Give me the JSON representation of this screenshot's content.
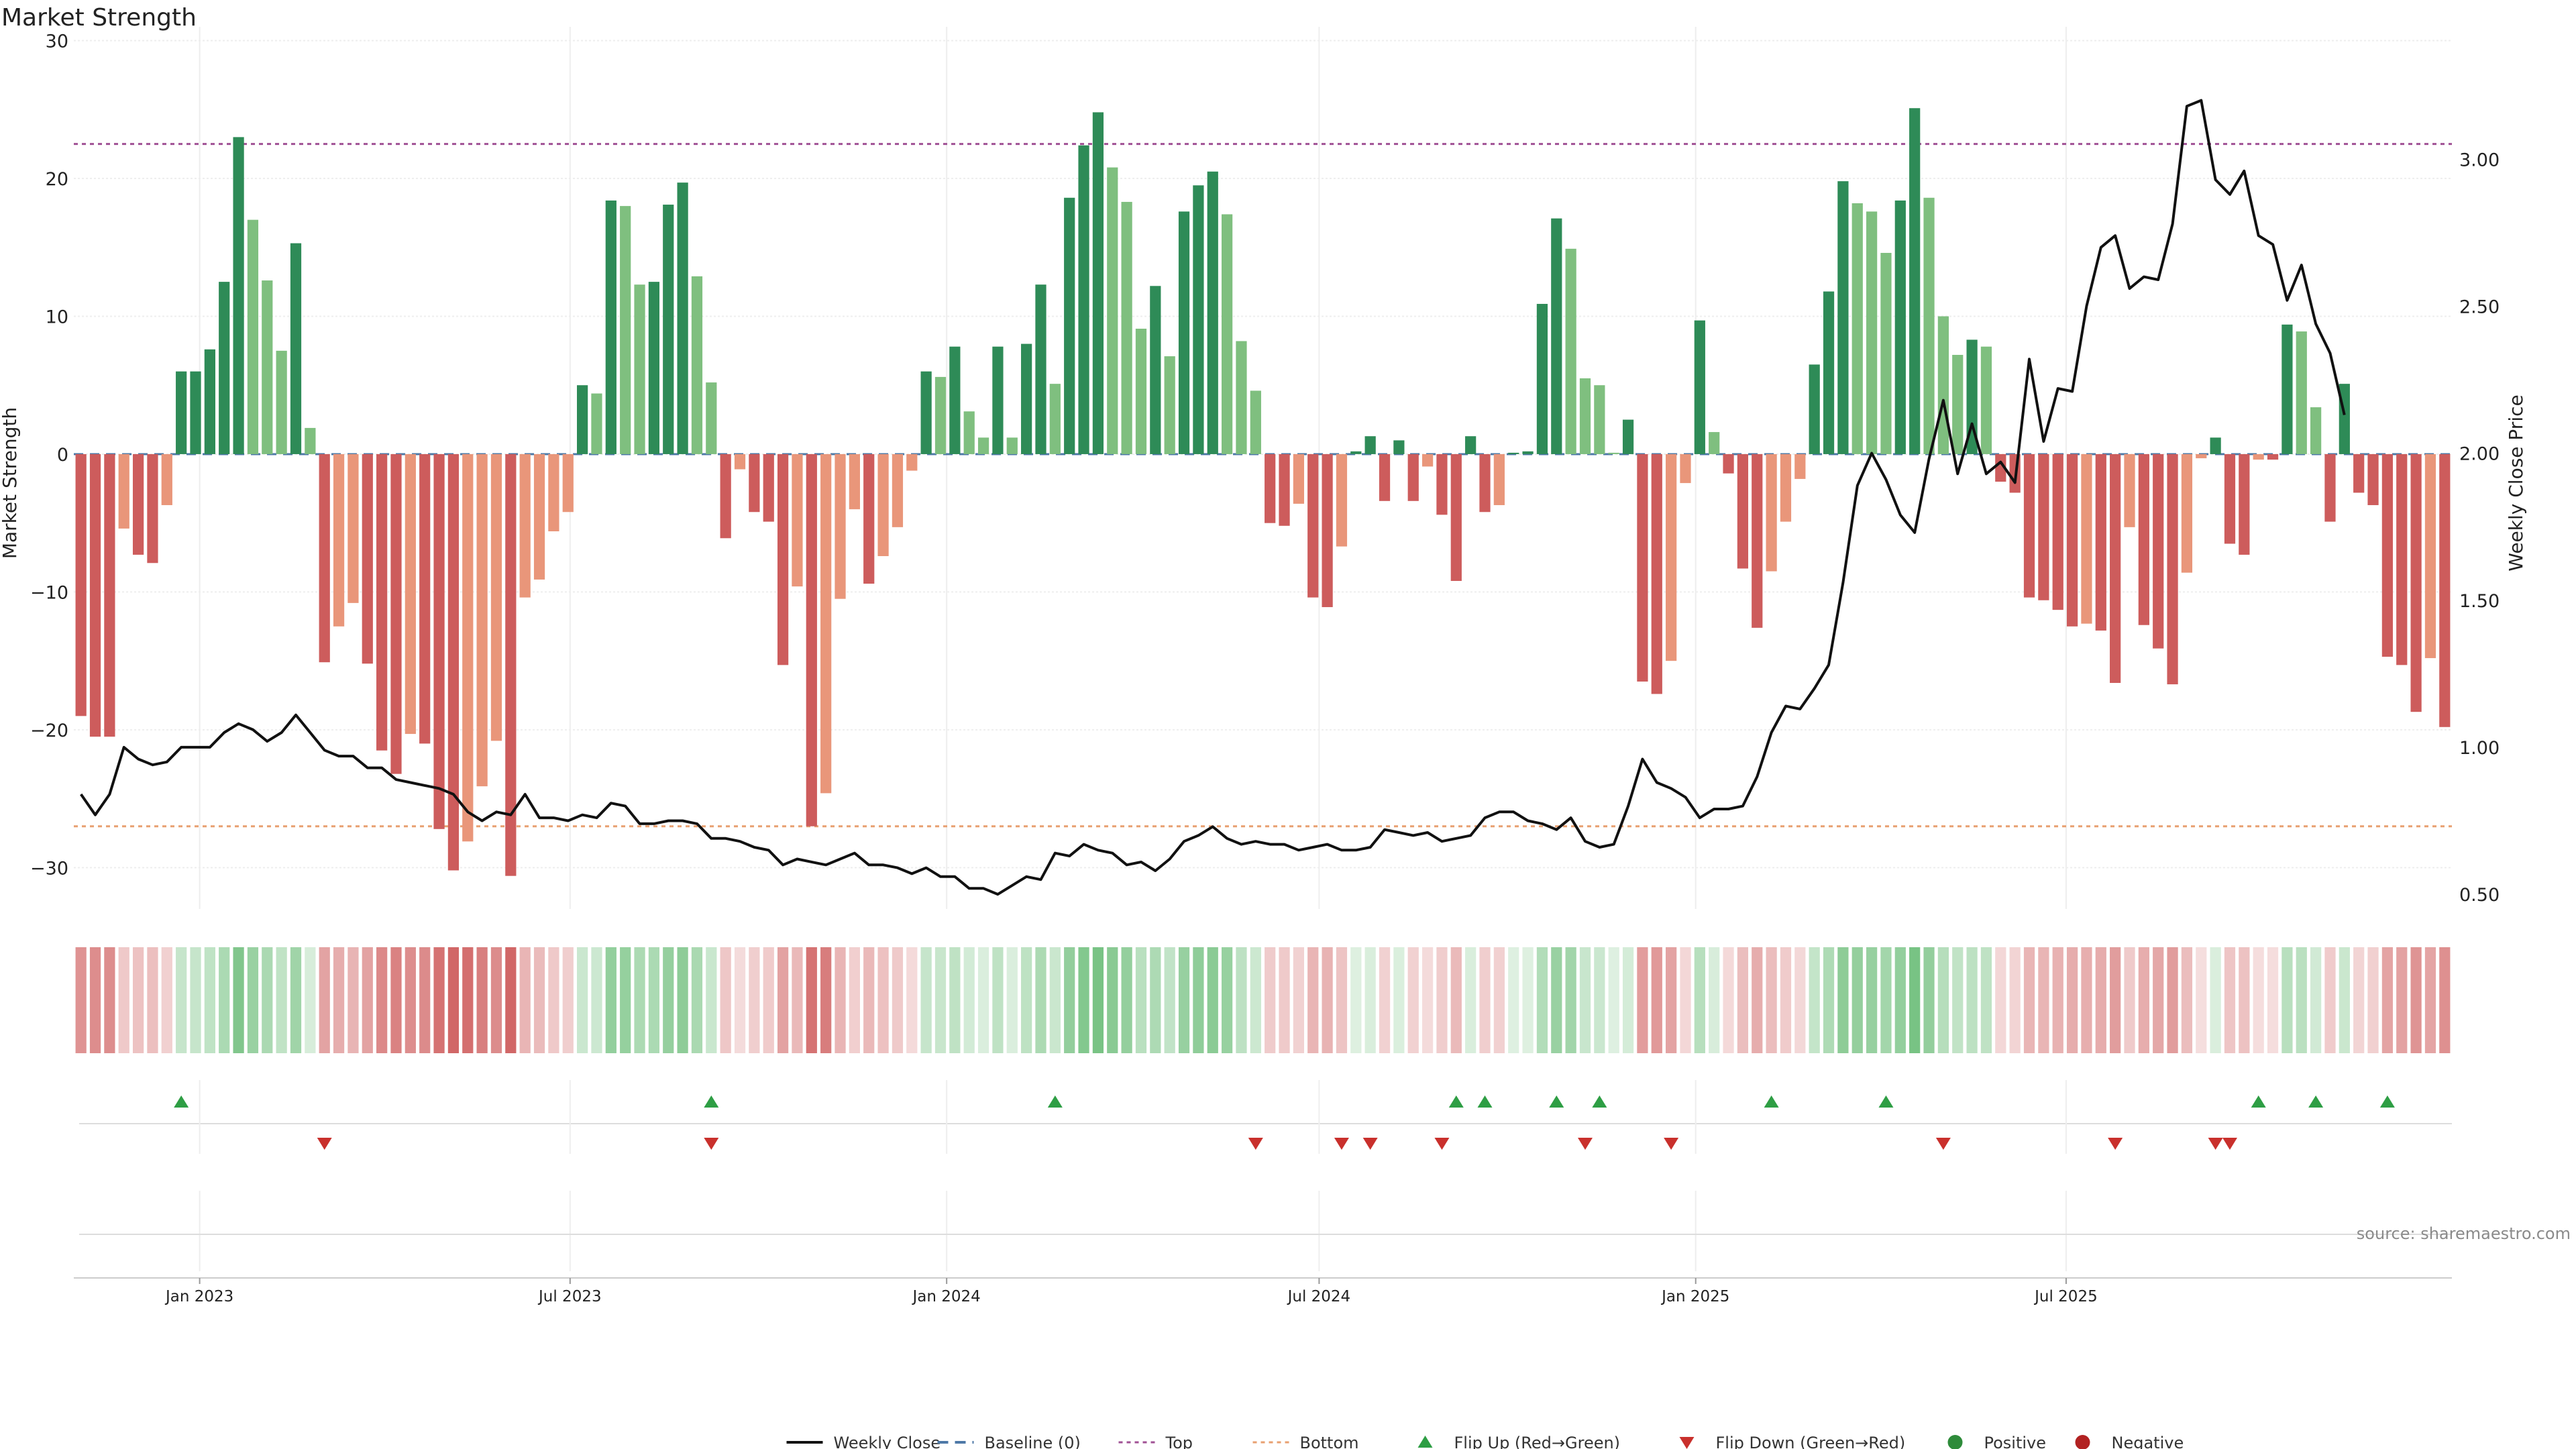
{
  "chart_data": {
    "type": "bar",
    "title": "Market Strength",
    "ylabel": "Market Strength",
    "y2label": "Weekly Close Price",
    "ylim": [
      -33,
      31
    ],
    "y2lim": [
      0.45,
      3.45
    ],
    "yticks": [
      30,
      20,
      10,
      0,
      -10,
      -20,
      -30
    ],
    "ytick_labels": [
      "30",
      "20",
      "10",
      "0",
      "−10",
      "−20",
      "−30"
    ],
    "y2ticks": [
      3.0,
      2.5,
      2.0,
      1.5,
      1.0,
      0.5
    ],
    "y2tick_labels": [
      "3.00",
      "2.50",
      "2.00",
      "1.50",
      "1.00",
      "0.50"
    ],
    "x_start": "2022-11-04",
    "x_step_days": 7,
    "xticks": [
      {
        "date": "2023-01-01",
        "label": "Jan 2023"
      },
      {
        "date": "2023-07-01",
        "label": "Jul 2023"
      },
      {
        "date": "2024-01-01",
        "label": "Jan 2024"
      },
      {
        "date": "2024-07-01",
        "label": "Jul 2024"
      },
      {
        "date": "2025-01-01",
        "label": "Jan 2025"
      },
      {
        "date": "2025-07-01",
        "label": "Jul 2025"
      }
    ],
    "top_level": 22.5,
    "bottom_level": -27,
    "baseline": 0,
    "strength": [
      -19,
      -20.5,
      -20.5,
      -5.4,
      -7.3,
      -7.9,
      -3.7,
      6,
      6,
      7.6,
      12.5,
      23,
      17,
      12.6,
      7.5,
      15.3,
      1.9,
      -15.1,
      -12.5,
      -10.8,
      -15.2,
      -21.5,
      -23.2,
      -20.3,
      -21,
      -27.2,
      -30.2,
      -28.1,
      -24.1,
      -20.8,
      -30.6,
      -10.4,
      -9.1,
      -5.6,
      -4.2,
      5,
      4.4,
      18.4,
      18,
      12.3,
      12.5,
      18.1,
      19.7,
      12.9,
      5.2,
      -6.1,
      -1.1,
      -4.2,
      -4.9,
      -15.3,
      -9.6,
      -27,
      -24.6,
      -10.5,
      -4,
      -9.4,
      -7.4,
      -5.3,
      -1.2,
      6,
      5.6,
      7.8,
      3.1,
      1.2,
      7.8,
      1.2,
      8,
      12.3,
      5.1,
      18.6,
      22.4,
      24.8,
      20.8,
      18.3,
      9.1,
      12.2,
      7.1,
      17.6,
      19.5,
      20.5,
      17.4,
      8.2,
      4.6,
      -5,
      -5.2,
      -3.6,
      -10.4,
      -11.1,
      -6.7,
      0.2,
      1.3,
      -3.4,
      1,
      -3.4,
      -0.9,
      -4.4,
      -9.2,
      1.3,
      -4.2,
      -3.7,
      0.1,
      0.2,
      10.9,
      17.1,
      14.9,
      5.5,
      5,
      0.1,
      2.5,
      -16.5,
      -17.4,
      -15,
      -2.1,
      9.7,
      1.6,
      -1.4,
      -8.3,
      -12.6,
      -8.5,
      -4.9,
      -1.8,
      6.5,
      11.8,
      19.8,
      18.2,
      17.6,
      14.6,
      18.4,
      25.1,
      18.6,
      10,
      7.2,
      8.3,
      7.8,
      -2,
      -2.8,
      -10.4,
      -10.6,
      -11.3,
      -12.5,
      -12.3,
      -12.8,
      -16.6,
      -5.3,
      -12.4,
      -14.1,
      -16.7,
      -8.6,
      -0.3,
      1.2,
      -6.5,
      -7.3,
      -0.4,
      -0.4,
      9.4,
      8.9,
      3.4,
      -4.9,
      5.1,
      -2.8,
      -3.7,
      -14.7,
      -15.3,
      -18.7,
      -14.8,
      -19.8
    ],
    "weekly_close": [
      0.84,
      0.77,
      0.84,
      1.0,
      0.96,
      0.94,
      0.95,
      1.0,
      1.0,
      1.0,
      1.05,
      1.08,
      1.06,
      1.02,
      1.05,
      1.11,
      1.05,
      0.99,
      0.97,
      0.97,
      0.93,
      0.93,
      0.89,
      0.88,
      0.87,
      0.86,
      0.84,
      0.78,
      0.75,
      0.78,
      0.77,
      0.84,
      0.76,
      0.76,
      0.75,
      0.77,
      0.76,
      0.81,
      0.8,
      0.74,
      0.74,
      0.75,
      0.75,
      0.74,
      0.69,
      0.69,
      0.68,
      0.66,
      0.65,
      0.6,
      0.62,
      0.61,
      0.6,
      0.62,
      0.64,
      0.6,
      0.6,
      0.59,
      0.57,
      0.59,
      0.56,
      0.56,
      0.52,
      0.52,
      0.5,
      0.53,
      0.56,
      0.55,
      0.64,
      0.63,
      0.67,
      0.65,
      0.64,
      0.6,
      0.61,
      0.58,
      0.62,
      0.68,
      0.7,
      0.73,
      0.69,
      0.67,
      0.68,
      0.67,
      0.67,
      0.65,
      0.66,
      0.67,
      0.65,
      0.65,
      0.66,
      0.72,
      0.71,
      0.7,
      0.71,
      0.68,
      0.69,
      0.7,
      0.76,
      0.78,
      0.78,
      0.75,
      0.74,
      0.72,
      0.76,
      0.68,
      0.66,
      0.67,
      0.8,
      0.96,
      0.88,
      0.86,
      0.83,
      0.76,
      0.79,
      0.79,
      0.8,
      0.9,
      1.05,
      1.14,
      1.13,
      1.2,
      1.28,
      1.56,
      1.89,
      2.0,
      1.91,
      1.79,
      1.73,
      1.98,
      2.18,
      1.93,
      2.1,
      1.93,
      1.97,
      1.9,
      2.32,
      2.04,
      2.22,
      2.21,
      2.5,
      2.7,
      2.74,
      2.56,
      2.6,
      2.59,
      2.78,
      3.18,
      3.2,
      2.93,
      2.88,
      2.96,
      2.74,
      2.71,
      2.52,
      2.64,
      2.44,
      2.34,
      2.13
    ]
  },
  "heat_strip": {
    "name": "Strength heat strip"
  },
  "flip_up_weeks": [
    7,
    44,
    68,
    96,
    98,
    103,
    106,
    118,
    126,
    152,
    156,
    161
  ],
  "flip_down_weeks": [
    17,
    44,
    82,
    88,
    90,
    95,
    105,
    111,
    130,
    142,
    149,
    150
  ],
  "legend": {
    "items": [
      {
        "label": "Weekly Close",
        "color": "#111111"
      },
      {
        "label": "Baseline (0)",
        "color": "#4e79a7"
      },
      {
        "label": "Top",
        "color": "#a05195"
      },
      {
        "label": "Bottom",
        "color": "#e8a070"
      },
      {
        "label": "Flip Up (Red→Green)",
        "color": "#2e9e44"
      },
      {
        "label": "Flip Down (Green→Red)",
        "color": "#c9302c"
      },
      {
        "label": "Positive",
        "color": "#2e8b3a"
      },
      {
        "label": "Negative",
        "color": "#b22222"
      }
    ]
  },
  "source_text": "source: sharemaestro.com",
  "colors": {
    "pos_strong": "#2e8b57",
    "pos_light": "#7fbf7f",
    "neg_strong": "#cd5c5c",
    "neg_light": "#e9967a",
    "baseline": "#4e79a7",
    "top": "#a05195",
    "bottom": "#e8a070",
    "line": "#111111",
    "flip_up": "#2e9e44",
    "flip_down": "#c9302c",
    "grid": "#eeeeee"
  }
}
